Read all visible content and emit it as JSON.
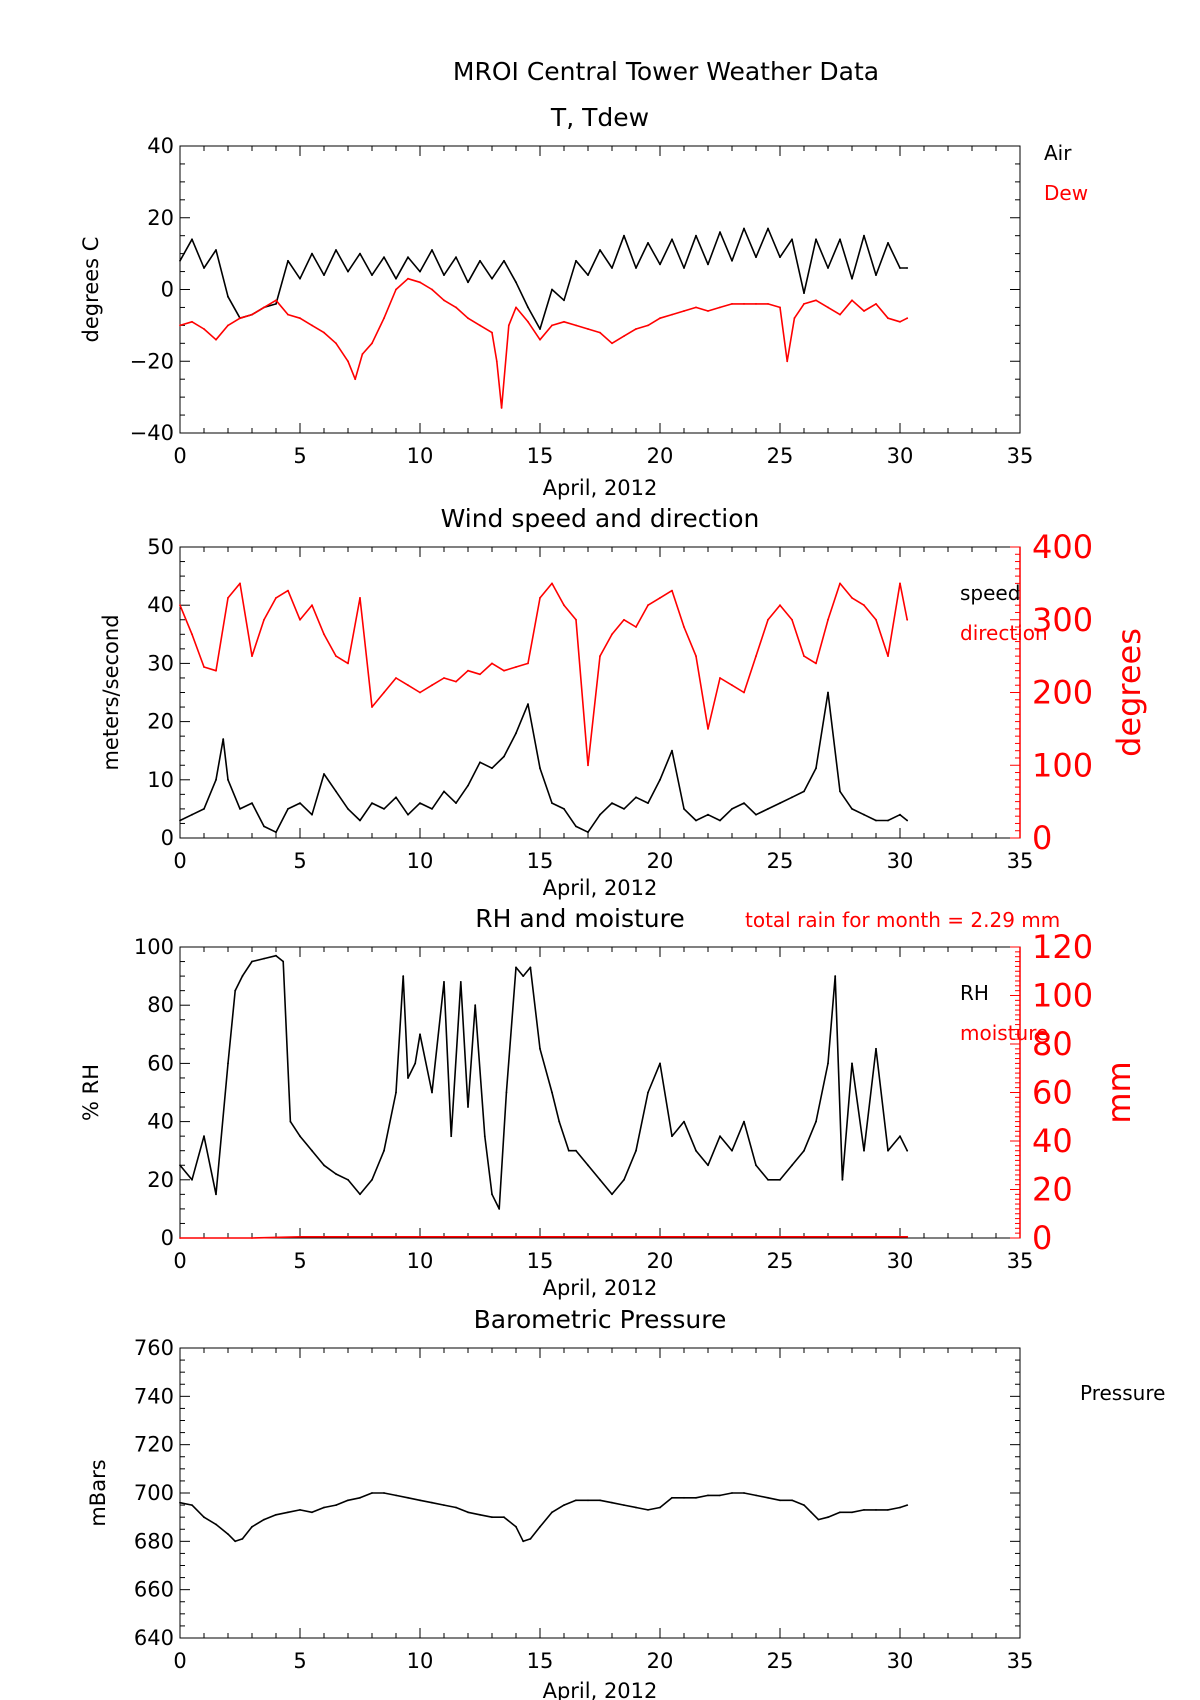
{
  "title": "MROI Central Tower Weather Data",
  "colors": {
    "primary": "#000000",
    "secondary": "#ff0000"
  },
  "chart_data": [
    {
      "type": "line",
      "title": "T, Tdew",
      "xlabel": "April, 2012",
      "ylabel": "degrees C",
      "xlim": [
        0,
        35
      ],
      "ylim": [
        -40,
        40
      ],
      "xticks": [
        0,
        5,
        10,
        15,
        20,
        25,
        30,
        35
      ],
      "yticks": [
        -40,
        -20,
        0,
        20,
        40
      ],
      "ytick_labels": [
        "−40",
        "−20",
        "0",
        "20",
        "40"
      ],
      "legend": [
        "Air",
        "Dew"
      ],
      "legend_placement": "right",
      "series": [
        {
          "name": "Air",
          "color": "#000000",
          "x": [
            0.0,
            0.5,
            1.0,
            1.5,
            2.0,
            2.5,
            3.0,
            3.5,
            4.0,
            4.5,
            5.0,
            5.5,
            6.0,
            6.5,
            7.0,
            7.5,
            8.0,
            8.5,
            9.0,
            9.5,
            10.0,
            10.5,
            11.0,
            11.5,
            12.0,
            12.5,
            13.0,
            13.5,
            14.0,
            14.5,
            15.0,
            15.5,
            16.0,
            16.5,
            17.0,
            17.5,
            18.0,
            18.5,
            19.0,
            19.5,
            20.0,
            20.5,
            21.0,
            21.5,
            22.0,
            22.5,
            23.0,
            23.5,
            24.0,
            24.5,
            25.0,
            25.5,
            26.0,
            26.5,
            27.0,
            27.5,
            28.0,
            28.5,
            29.0,
            29.5,
            30.0,
            30.3
          ],
          "values": [
            8,
            14,
            6,
            11,
            -2,
            -8,
            -7,
            -5,
            -4,
            8,
            3,
            10,
            4,
            11,
            5,
            10,
            4,
            9,
            3,
            9,
            5,
            11,
            4,
            9,
            2,
            8,
            3,
            8,
            2,
            -5,
            -11,
            0,
            -3,
            8,
            4,
            11,
            6,
            15,
            6,
            13,
            7,
            14,
            6,
            15,
            7,
            16,
            8,
            17,
            9,
            17,
            9,
            14,
            -1,
            14,
            6,
            14,
            3,
            15,
            4,
            13,
            6,
            6
          ]
        },
        {
          "name": "Dew",
          "color": "#ff0000",
          "x": [
            0.0,
            0.5,
            1.0,
            1.5,
            2.0,
            2.5,
            3.0,
            3.5,
            4.0,
            4.5,
            5.0,
            5.5,
            6.0,
            6.5,
            7.0,
            7.3,
            7.6,
            8.0,
            8.5,
            9.0,
            9.5,
            10.0,
            10.5,
            11.0,
            11.5,
            12.0,
            12.5,
            13.0,
            13.2,
            13.4,
            13.7,
            14.0,
            14.5,
            15.0,
            15.5,
            16.0,
            16.5,
            17.0,
            17.5,
            18.0,
            18.5,
            19.0,
            19.5,
            20.0,
            20.5,
            21.0,
            21.5,
            22.0,
            22.5,
            23.0,
            23.5,
            24.0,
            24.5,
            25.0,
            25.3,
            25.6,
            26.0,
            26.5,
            27.0,
            27.5,
            28.0,
            28.5,
            29.0,
            29.5,
            30.0,
            30.3
          ],
          "values": [
            -10,
            -9,
            -11,
            -14,
            -10,
            -8,
            -7,
            -5,
            -3,
            -7,
            -8,
            -10,
            -12,
            -15,
            -20,
            -25,
            -18,
            -15,
            -8,
            0,
            3,
            2,
            0,
            -3,
            -5,
            -8,
            -10,
            -12,
            -20,
            -33,
            -10,
            -5,
            -9,
            -14,
            -10,
            -9,
            -10,
            -11,
            -12,
            -15,
            -13,
            -11,
            -10,
            -8,
            -7,
            -6,
            -5,
            -6,
            -5,
            -4,
            -4,
            -4,
            -4,
            -5,
            -20,
            -8,
            -4,
            -3,
            -5,
            -7,
            -3,
            -6,
            -4,
            -8,
            -9,
            -8
          ]
        }
      ]
    },
    {
      "type": "line",
      "title": "Wind speed and direction",
      "xlabel": "April, 2012",
      "ylabel": "meters/second",
      "ylabel_right": "degrees",
      "xlim": [
        0,
        35
      ],
      "ylim": [
        0,
        50
      ],
      "ylim_right": [
        0,
        400
      ],
      "xticks": [
        0,
        5,
        10,
        15,
        20,
        25,
        30,
        35
      ],
      "yticks": [
        0,
        10,
        20,
        30,
        40,
        50
      ],
      "yticks_right": [
        0,
        100,
        200,
        300,
        400
      ],
      "legend": [
        "speed",
        "direction"
      ],
      "legend_placement": "right",
      "series": [
        {
          "name": "speed",
          "color": "#000000",
          "axis": "left",
          "x": [
            0.0,
            0.5,
            1.0,
            1.5,
            1.8,
            2.0,
            2.5,
            3.0,
            3.5,
            4.0,
            4.5,
            5.0,
            5.5,
            6.0,
            6.5,
            7.0,
            7.5,
            8.0,
            8.5,
            9.0,
            9.5,
            10.0,
            10.5,
            11.0,
            11.5,
            12.0,
            12.5,
            13.0,
            13.5,
            14.0,
            14.5,
            15.0,
            15.5,
            16.0,
            16.5,
            17.0,
            17.5,
            18.0,
            18.5,
            19.0,
            19.5,
            20.0,
            20.5,
            21.0,
            21.5,
            22.0,
            22.5,
            23.0,
            23.5,
            24.0,
            24.5,
            25.0,
            25.5,
            26.0,
            26.5,
            27.0,
            27.5,
            28.0,
            28.5,
            29.0,
            29.5,
            30.0,
            30.3
          ],
          "values": [
            3,
            4,
            5,
            10,
            17,
            10,
            5,
            6,
            2,
            1,
            5,
            6,
            4,
            11,
            8,
            5,
            3,
            6,
            5,
            7,
            4,
            6,
            5,
            8,
            6,
            9,
            13,
            12,
            14,
            18,
            23,
            12,
            6,
            5,
            2,
            1,
            4,
            6,
            5,
            7,
            6,
            10,
            15,
            5,
            3,
            4,
            3,
            5,
            6,
            4,
            5,
            6,
            7,
            8,
            12,
            25,
            8,
            5,
            4,
            3,
            3,
            4,
            3
          ]
        },
        {
          "name": "direction",
          "color": "#ff0000",
          "axis": "right",
          "x": [
            0.0,
            0.5,
            1.0,
            1.5,
            2.0,
            2.5,
            3.0,
            3.5,
            4.0,
            4.5,
            5.0,
            5.5,
            6.0,
            6.5,
            7.0,
            7.5,
            8.0,
            8.5,
            9.0,
            9.5,
            10.0,
            10.5,
            11.0,
            11.5,
            12.0,
            12.5,
            13.0,
            13.5,
            14.0,
            14.5,
            15.0,
            15.5,
            16.0,
            16.5,
            17.0,
            17.5,
            18.0,
            18.5,
            19.0,
            19.5,
            20.0,
            20.5,
            21.0,
            21.5,
            22.0,
            22.5,
            23.0,
            23.5,
            24.0,
            24.5,
            25.0,
            25.5,
            26.0,
            26.5,
            27.0,
            27.5,
            28.0,
            28.5,
            29.0,
            29.5,
            30.0,
            30.3
          ],
          "values": [
            320,
            280,
            235,
            230,
            330,
            350,
            250,
            300,
            330,
            340,
            300,
            320,
            280,
            250,
            240,
            330,
            180,
            200,
            220,
            210,
            200,
            210,
            220,
            215,
            230,
            225,
            240,
            230,
            235,
            240,
            330,
            350,
            320,
            300,
            100,
            250,
            280,
            300,
            290,
            320,
            330,
            340,
            290,
            250,
            150,
            220,
            210,
            200,
            250,
            300,
            320,
            300,
            250,
            240,
            300,
            350,
            330,
            320,
            300,
            250,
            350,
            300
          ]
        }
      ]
    },
    {
      "type": "line",
      "title": "RH and moisture",
      "annotation": "total rain for month =      2.29 mm",
      "xlabel": "April, 2012",
      "ylabel": "% RH",
      "ylabel_right": "mm",
      "xlim": [
        0,
        35
      ],
      "ylim": [
        0,
        100
      ],
      "ylim_right": [
        0,
        120
      ],
      "xticks": [
        0,
        5,
        10,
        15,
        20,
        25,
        30,
        35
      ],
      "yticks": [
        0,
        20,
        40,
        60,
        80,
        100
      ],
      "yticks_right": [
        0,
        20,
        40,
        60,
        80,
        100,
        120
      ],
      "legend": [
        "RH",
        "moisture"
      ],
      "legend_placement": "right",
      "series": [
        {
          "name": "RH",
          "color": "#000000",
          "axis": "left",
          "x": [
            0.0,
            0.5,
            1.0,
            1.5,
            2.0,
            2.3,
            2.6,
            3.0,
            3.5,
            4.0,
            4.3,
            4.6,
            5.0,
            5.5,
            6.0,
            6.5,
            7.0,
            7.5,
            8.0,
            8.5,
            9.0,
            9.3,
            9.5,
            9.8,
            10.0,
            10.5,
            11.0,
            11.3,
            11.7,
            12.0,
            12.3,
            12.7,
            13.0,
            13.3,
            13.6,
            14.0,
            14.3,
            14.6,
            15.0,
            15.5,
            15.8,
            16.2,
            16.5,
            17.0,
            17.5,
            18.0,
            18.5,
            19.0,
            19.5,
            20.0,
            20.5,
            21.0,
            21.5,
            22.0,
            22.5,
            23.0,
            23.5,
            24.0,
            24.5,
            25.0,
            25.5,
            26.0,
            26.5,
            27.0,
            27.3,
            27.6,
            28.0,
            28.5,
            29.0,
            29.5,
            30.0,
            30.3
          ],
          "values": [
            25,
            20,
            35,
            15,
            60,
            85,
            90,
            95,
            96,
            97,
            95,
            40,
            35,
            30,
            25,
            22,
            20,
            15,
            20,
            30,
            50,
            90,
            55,
            60,
            70,
            50,
            88,
            35,
            88,
            45,
            80,
            35,
            15,
            10,
            50,
            93,
            90,
            93,
            65,
            50,
            40,
            30,
            30,
            25,
            20,
            15,
            20,
            30,
            50,
            60,
            35,
            40,
            30,
            25,
            35,
            30,
            40,
            25,
            20,
            20,
            25,
            30,
            40,
            60,
            90,
            20,
            60,
            30,
            65,
            30,
            35,
            30
          ]
        },
        {
          "name": "moisture",
          "color": "#ff0000",
          "axis": "right",
          "x": [
            0,
            3,
            5,
            30.3
          ],
          "values": [
            0,
            0,
            0.5,
            0.5
          ]
        }
      ]
    },
    {
      "type": "line",
      "title": "Barometric Pressure",
      "xlabel": "April, 2012",
      "ylabel": "mBars",
      "xlim": [
        0,
        35
      ],
      "ylim": [
        640,
        760
      ],
      "xticks": [
        0,
        5,
        10,
        15,
        20,
        25,
        30,
        35
      ],
      "yticks": [
        640,
        660,
        680,
        700,
        720,
        740,
        760
      ],
      "legend": [
        "Pressure"
      ],
      "legend_placement": "right",
      "series": [
        {
          "name": "Pressure",
          "color": "#000000",
          "x": [
            0.0,
            0.5,
            1.0,
            1.5,
            2.0,
            2.3,
            2.6,
            3.0,
            3.5,
            4.0,
            4.5,
            5.0,
            5.5,
            6.0,
            6.5,
            7.0,
            7.5,
            8.0,
            8.5,
            9.0,
            9.5,
            10.0,
            10.5,
            11.0,
            11.5,
            12.0,
            12.5,
            13.0,
            13.5,
            14.0,
            14.3,
            14.6,
            15.0,
            15.5,
            16.0,
            16.5,
            17.0,
            17.5,
            18.0,
            18.5,
            19.0,
            19.5,
            20.0,
            20.5,
            21.0,
            21.5,
            22.0,
            22.5,
            23.0,
            23.5,
            24.0,
            24.5,
            25.0,
            25.5,
            26.0,
            26.3,
            26.6,
            27.0,
            27.5,
            28.0,
            28.5,
            29.0,
            29.5,
            30.0,
            30.3
          ],
          "values": [
            696,
            695,
            690,
            687,
            683,
            680,
            681,
            686,
            689,
            691,
            692,
            693,
            692,
            694,
            695,
            697,
            698,
            700,
            700,
            699,
            698,
            697,
            696,
            695,
            694,
            692,
            691,
            690,
            690,
            686,
            680,
            681,
            686,
            692,
            695,
            697,
            697,
            697,
            696,
            695,
            694,
            693,
            694,
            698,
            698,
            698,
            699,
            699,
            700,
            700,
            699,
            698,
            697,
            697,
            695,
            692,
            689,
            690,
            692,
            692,
            693,
            693,
            693,
            694,
            695
          ]
        }
      ]
    }
  ]
}
